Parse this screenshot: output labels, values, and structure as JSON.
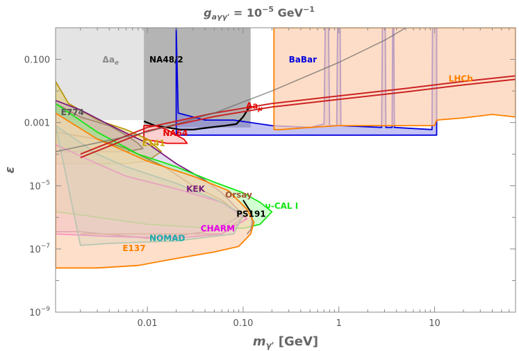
{
  "chart_data": {
    "type": "area",
    "title": "g_{aγγ'} = 10^{-5} GeV^{-1}",
    "title_parts": {
      "g": "g",
      "sub": "aγγ'",
      "rhs": " = 10",
      "exp": "−5",
      "unit": " GeV",
      "unit_exp": "−1"
    },
    "xlabel": "m_{γ'} [GeV]",
    "xlabel_parts": {
      "m": "m",
      "sub": "γ'",
      "unit": " [GeV]"
    },
    "ylabel": "ε",
    "x_scale": "log",
    "y_scale": "log",
    "xlim": [
      0.0011,
      70
    ],
    "ylim": [
      1e-09,
      1
    ],
    "x_ticks": [
      {
        "value": 0.01,
        "label": "0.01"
      },
      {
        "value": 0.1,
        "label": "0.10"
      },
      {
        "value": 1,
        "label": "1"
      },
      {
        "value": 10,
        "label": "10"
      }
    ],
    "y_ticks": [
      {
        "value": 0.1,
        "base": "0.100",
        "exp": ""
      },
      {
        "value": 0.001,
        "base": "0.001",
        "exp": ""
      },
      {
        "value": 1e-05,
        "base": "10",
        "exp": "−5"
      },
      {
        "value": 1e-07,
        "base": "10",
        "exp": "−7"
      },
      {
        "value": 1e-09,
        "base": "10",
        "exp": "−9"
      }
    ],
    "series": [
      {
        "name": "Δa_e",
        "label_base": "Δa",
        "label_sub": "e",
        "style": "fill",
        "fill": "#d9d9d9",
        "stroke": "none",
        "opacity": 0.7,
        "points": [
          [
            0.0011,
            1
          ],
          [
            0.0092,
            1
          ],
          [
            0.0092,
            0.0012
          ],
          [
            0.0011,
            0.0012
          ]
        ],
        "label_at": [
          0.0034,
          0.08
        ],
        "label_color": "#888888"
      },
      {
        "name": "NA48/2",
        "style": "fill",
        "fill": "#8c8c8c",
        "stroke": "none",
        "opacity": 0.65,
        "points": [
          [
            0.0092,
            1
          ],
          [
            0.12,
            1
          ],
          [
            0.12,
            0.0007
          ],
          [
            0.0092,
            0.0007
          ]
        ],
        "label_at": [
          0.0105,
          0.08
        ],
        "label_color": "#000000"
      },
      {
        "name": "BaBar",
        "style": "fill",
        "fill": "#7a7ae6",
        "stroke": "#0000dd",
        "opacity": 0.45,
        "points": [
          [
            0.02,
            1
          ],
          [
            0.021,
            0.002
          ],
          [
            0.04,
            0.0012
          ],
          [
            0.08,
            0.0012
          ],
          [
            0.2,
            0.0008
          ],
          [
            0.5,
            0.0007
          ],
          [
            0.7,
            0.0009
          ],
          [
            0.72,
            1
          ],
          [
            0.78,
            1
          ],
          [
            0.8,
            0.0008
          ],
          [
            0.95,
            0.0008
          ],
          [
            0.97,
            1
          ],
          [
            1.03,
            1
          ],
          [
            1.05,
            0.0008
          ],
          [
            2.8,
            0.0007
          ],
          [
            2.85,
            1
          ],
          [
            3.05,
            1
          ],
          [
            3.1,
            0.0007
          ],
          [
            3.6,
            0.0007
          ],
          [
            3.65,
            1
          ],
          [
            3.75,
            1
          ],
          [
            3.8,
            0.0007
          ],
          [
            9.4,
            0.0006
          ],
          [
            9.5,
            1
          ],
          [
            10.5,
            1
          ],
          [
            10.5,
            0.0004
          ],
          [
            0.02,
            0.0004
          ]
        ],
        "label_at": [
          0.3,
          0.08
        ],
        "label_color": "#0000dd"
      },
      {
        "name": "LHCb",
        "style": "fill",
        "fill": "#fcd2b4",
        "stroke": "#ff8000",
        "opacity": 0.75,
        "points": [
          [
            0.21,
            1
          ],
          [
            70,
            1
          ],
          [
            70,
            0.0015
          ],
          [
            40,
            0.0018
          ],
          [
            20,
            0.0014
          ],
          [
            10.5,
            0.0012
          ],
          [
            10,
            0.0008
          ],
          [
            5,
            0.0008
          ],
          [
            2,
            0.0008
          ],
          [
            1,
            0.0008
          ],
          [
            0.5,
            0.0007
          ],
          [
            0.25,
            0.0006
          ],
          [
            0.21,
            0.0006
          ]
        ],
        "label_at": [
          14,
          0.02
        ],
        "label_color": "#ff8000"
      },
      {
        "name": "Δa_μ",
        "label_base": "Δa",
        "label_sub": "μ",
        "style": "line",
        "stroke": "#000000",
        "width": 2.3,
        "points": [
          [
            0.0092,
            0.0011
          ],
          [
            0.012,
            0.0008
          ],
          [
            0.016,
            0.0007
          ],
          [
            0.022,
            0.0006
          ],
          [
            0.03,
            0.0006
          ],
          [
            0.045,
            0.0007
          ],
          [
            0.065,
            0.0008
          ],
          [
            0.085,
            0.0009
          ],
          [
            0.1,
            0.0015
          ],
          [
            0.115,
            0.003
          ],
          [
            0.12,
            0.0035
          ]
        ],
        "label_at": [
          0.107,
          0.0028
        ],
        "label_color": "#e60000"
      },
      {
        "name": "NA64",
        "style": "fill",
        "fill": "#ffb0b0",
        "stroke": "#e60000",
        "opacity": 0.6,
        "points": [
          [
            0.0092,
            0.0008
          ],
          [
            0.012,
            0.0008
          ],
          [
            0.016,
            0.0006
          ],
          [
            0.02,
            0.0004
          ],
          [
            0.024,
            0.0003
          ],
          [
            0.026,
            0.00022
          ],
          [
            0.016,
            0.00022
          ],
          [
            0.0092,
            0.0003
          ]
        ],
        "label_at": [
          0.0145,
          0.00038
        ],
        "label_color": "#e60000"
      },
      {
        "name": "E774",
        "style": "fill",
        "fill": "#c0a080",
        "stroke": "#6b4e3a",
        "opacity": 0.35,
        "points": [
          [
            0.0011,
            0.004
          ],
          [
            0.002,
            0.0015
          ],
          [
            0.004,
            0.0008
          ],
          [
            0.006,
            0.0004
          ],
          [
            0.008,
            0.00022
          ],
          [
            0.009,
            0.00015
          ],
          [
            0.006,
            0.00012
          ],
          [
            0.004,
            0.00012
          ],
          [
            0.002,
            0.00012
          ],
          [
            0.0011,
            0.00012
          ]
        ],
        "label_at": [
          0.00125,
          0.0017
        ],
        "label_color": "#555555"
      },
      {
        "name": "E141",
        "style": "fill",
        "fill": "#e0c040",
        "stroke": "#b8960c",
        "opacity": 0.4,
        "points": [
          [
            0.0011,
            0.02
          ],
          [
            0.0015,
            0.004
          ],
          [
            0.003,
            0.0012
          ],
          [
            0.006,
            0.0006
          ],
          [
            0.01,
            0.0003
          ],
          [
            0.014,
            0.00012
          ],
          [
            0.01,
            6e-05
          ],
          [
            0.006,
            5e-05
          ],
          [
            0.003,
            5e-05
          ],
          [
            0.0011,
            5e-05
          ]
        ],
        "label_at": [
          0.0088,
          0.00018
        ],
        "label_color": "#c9a400"
      },
      {
        "name": "KEK",
        "style": "fill",
        "fill": "#b0a0d0",
        "stroke": "#7a1a7a",
        "opacity": 0.35,
        "points": [
          [
            0.0011,
            0.005
          ],
          [
            0.002,
            0.0025
          ],
          [
            0.004,
            0.00085
          ],
          [
            0.01,
            0.00022
          ],
          [
            0.02,
            5e-05
          ],
          [
            0.04,
            1.5e-05
          ],
          [
            0.06,
            6e-06
          ],
          [
            0.1,
            1.2e-06
          ],
          [
            0.05,
            4e-07
          ],
          [
            0.02,
            2.5e-07
          ],
          [
            0.01,
            2.2e-07
          ],
          [
            0.002,
            3.5e-07
          ],
          [
            0.0011,
            3.5e-07
          ]
        ],
        "label_at": [
          0.0255,
          6.5e-06
        ],
        "label_color": "#7a1a7a"
      },
      {
        "name": "Orsay",
        "style": "line",
        "stroke": "#a0522d",
        "width": 1.8,
        "points": [
          [
            0.0011,
            0.0005
          ],
          [
            0.003,
            0.0003
          ],
          [
            0.006,
            0.00015
          ],
          [
            0.015,
            4e-05
          ],
          [
            0.03,
            1e-05
          ],
          [
            0.06,
            3.5e-06
          ],
          [
            0.1,
            1e-06
          ],
          [
            0.06,
            3e-07
          ],
          [
            0.02,
            3e-07
          ],
          [
            0.002,
            3e-07
          ]
        ],
        "label_at": [
          0.065,
          4.2e-06
        ],
        "label_color": "#a0522d"
      },
      {
        "name": "ν-CAL I",
        "style": "fill",
        "fill": "#7aff7a",
        "stroke": "#14e614",
        "opacity": 0.35,
        "points": [
          [
            0.0011,
            0.004
          ],
          [
            0.003,
            0.0005
          ],
          [
            0.008,
            0.0001
          ],
          [
            0.02,
            4e-05
          ],
          [
            0.05,
            1.3e-05
          ],
          [
            0.1,
            6e-06
          ],
          [
            0.15,
            3e-06
          ],
          [
            0.2,
            1.5e-06
          ],
          [
            0.15,
            6e-07
          ],
          [
            0.1,
            4.5e-07
          ],
          [
            0.05,
            4.5e-07
          ],
          [
            0.01,
            6e-07
          ],
          [
            0.002,
            1.2e-06
          ],
          [
            0.0011,
            1.5e-06
          ]
        ],
        "label_at": [
          0.17,
          1.85e-06
        ],
        "label_color": "#14e614"
      },
      {
        "name": "CHARM",
        "style": "fill",
        "fill": "#ff9cff",
        "stroke": "#e600e6",
        "opacity": 0.3,
        "points": [
          [
            0.0011,
            0.0002
          ],
          [
            0.003,
            5e-05
          ],
          [
            0.006,
            2e-05
          ],
          [
            0.02,
            8e-06
          ],
          [
            0.06,
            3e-06
          ],
          [
            0.11,
            9e-07
          ],
          [
            0.06,
            3e-07
          ],
          [
            0.02,
            2.2e-07
          ],
          [
            0.004,
            2.5e-07
          ],
          [
            0.0011,
            3e-07
          ]
        ],
        "label_at": [
          0.036,
          3.6e-07
        ],
        "label_color": "#e600e6"
      },
      {
        "name": "NOMAD",
        "style": "fill",
        "fill": "#40c0c0",
        "stroke": "#1aabab",
        "opacity": 0.25,
        "points": [
          [
            0.0011,
            0.0008
          ],
          [
            0.003,
            0.0001
          ],
          [
            0.006,
            4e-05
          ],
          [
            0.02,
            1.2e-05
          ],
          [
            0.06,
            3e-06
          ],
          [
            0.1,
            1.2e-06
          ],
          [
            0.08,
            3e-07
          ],
          [
            0.02,
            1.8e-07
          ],
          [
            0.004,
            1.5e-07
          ],
          [
            0.002,
            1.3e-07
          ]
        ],
        "label_at": [
          0.0105,
          1.8e-07
        ],
        "label_color": "#1aabab"
      },
      {
        "name": "PS191",
        "style": "line",
        "stroke": "#000000",
        "width": 2,
        "points": [
          [
            0.1,
            3.5e-06
          ],
          [
            0.12,
            1.5e-06
          ],
          [
            0.125,
            7e-07
          ],
          [
            0.12,
            4e-07
          ],
          [
            0.11,
            3e-07
          ]
        ],
        "label_at": [
          0.085,
          1.05e-06
        ],
        "label_color": "#000000"
      },
      {
        "name": "E137",
        "style": "fill",
        "fill": "#fcd2b4",
        "stroke": "#ff8000",
        "opacity": 0.7,
        "points": [
          [
            0.0011,
            0.002
          ],
          [
            0.003,
            0.0003
          ],
          [
            0.006,
            0.00012
          ],
          [
            0.01,
            6e-05
          ],
          [
            0.03,
            2e-05
          ],
          [
            0.07,
            7e-06
          ],
          [
            0.11,
            1.8e-06
          ],
          [
            0.13,
            7e-07
          ],
          [
            0.12,
            3e-07
          ],
          [
            0.09,
            1.2e-07
          ],
          [
            0.05,
            8e-08
          ],
          [
            0.02,
            5e-08
          ],
          [
            0.008,
            3e-08
          ],
          [
            0.003,
            2.5e-08
          ],
          [
            0.0011,
            2.5e-08
          ]
        ],
        "label_at": [
          0.0055,
          8.5e-08
        ],
        "label_color": "#ff8000"
      },
      {
        "name": "LHCb-bound-line",
        "style": "double_line",
        "stroke": "#cc2222",
        "width": 2,
        "points": [
          [
            0.002,
            0.0001
          ],
          [
            0.01,
            0.0007
          ],
          [
            0.05,
            0.002
          ],
          [
            0.2,
            0.004
          ],
          [
            1,
            0.007
          ],
          [
            5,
            0.012
          ],
          [
            20,
            0.02
          ],
          [
            70,
            0.03
          ]
        ]
      },
      {
        "name": "gray-diagonal",
        "style": "line",
        "stroke": "#666666",
        "width": 1.5,
        "opacity": 0.7,
        "points": [
          [
            0.0011,
            0.00012
          ],
          [
            0.01,
            0.0005
          ],
          [
            0.05,
            0.002
          ],
          [
            0.2,
            0.01
          ],
          [
            1,
            0.08
          ],
          [
            3,
            0.4
          ],
          [
            5,
            1
          ]
        ]
      }
    ]
  }
}
